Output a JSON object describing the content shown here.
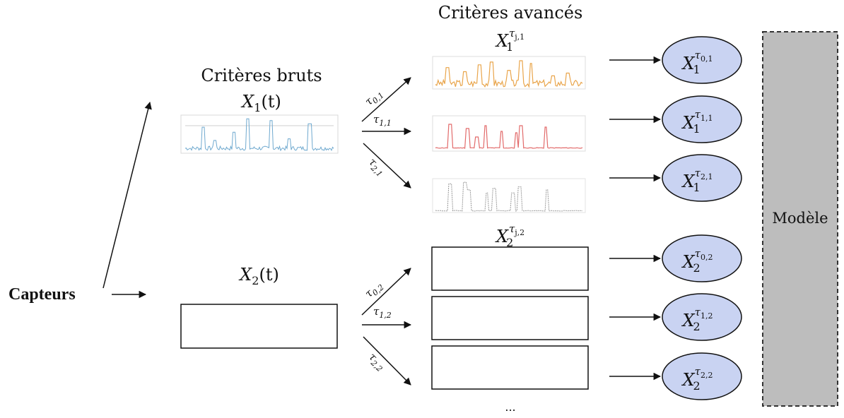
{
  "colors": {
    "ellipse_fill": "#c9d3f2",
    "model_fill": "#bdbdbd",
    "raw_signal": "#6fa9cf",
    "adv_signal_0": "#e9a54b",
    "adv_signal_1": "#e26b6b",
    "adv_signal_2": "#9a9a9a"
  },
  "labels": {
    "sensors": "Capteurs",
    "raw_title": "Critères bruts",
    "raw_x1_main": "X",
    "raw_x1_sub": "1",
    "raw_x1_arg": "(t)",
    "raw_x2_main": "X",
    "raw_x2_sub": "2",
    "raw_x2_arg": "(t)",
    "adv_title": "Critères avancés",
    "adv1_main": "X",
    "adv1_sub": "1",
    "adv1_sup": "τ",
    "adv1_sup_sub": "j,1",
    "adv2_main": "X",
    "adv2_sub": "2",
    "adv2_sup": "τ",
    "adv2_sup_sub": "j,2",
    "model": "Modèle",
    "ellipsis": "..."
  },
  "transforms": [
    {
      "sym": "τ",
      "sub": "0,1"
    },
    {
      "sym": "τ",
      "sub": "1,1"
    },
    {
      "sym": "τ",
      "sub": "2,1"
    },
    {
      "sym": "τ",
      "sub": "0,2"
    },
    {
      "sym": "τ",
      "sub": "1,2"
    },
    {
      "sym": "τ",
      "sub": "2,2"
    }
  ],
  "outputs": [
    {
      "main": "X",
      "sub": "1",
      "sup": "τ",
      "sup_sub": "0,1"
    },
    {
      "main": "X",
      "sub": "1",
      "sup": "τ",
      "sup_sub": "1,1"
    },
    {
      "main": "X",
      "sub": "1",
      "sup": "τ",
      "sup_sub": "2,1"
    },
    {
      "main": "X",
      "sub": "2",
      "sup": "τ",
      "sup_sub": "0,2"
    },
    {
      "main": "X",
      "sub": "2",
      "sup": "τ",
      "sup_sub": "1,2"
    },
    {
      "main": "X",
      "sub": "2",
      "sup": "τ",
      "sup_sub": "2,2"
    }
  ]
}
